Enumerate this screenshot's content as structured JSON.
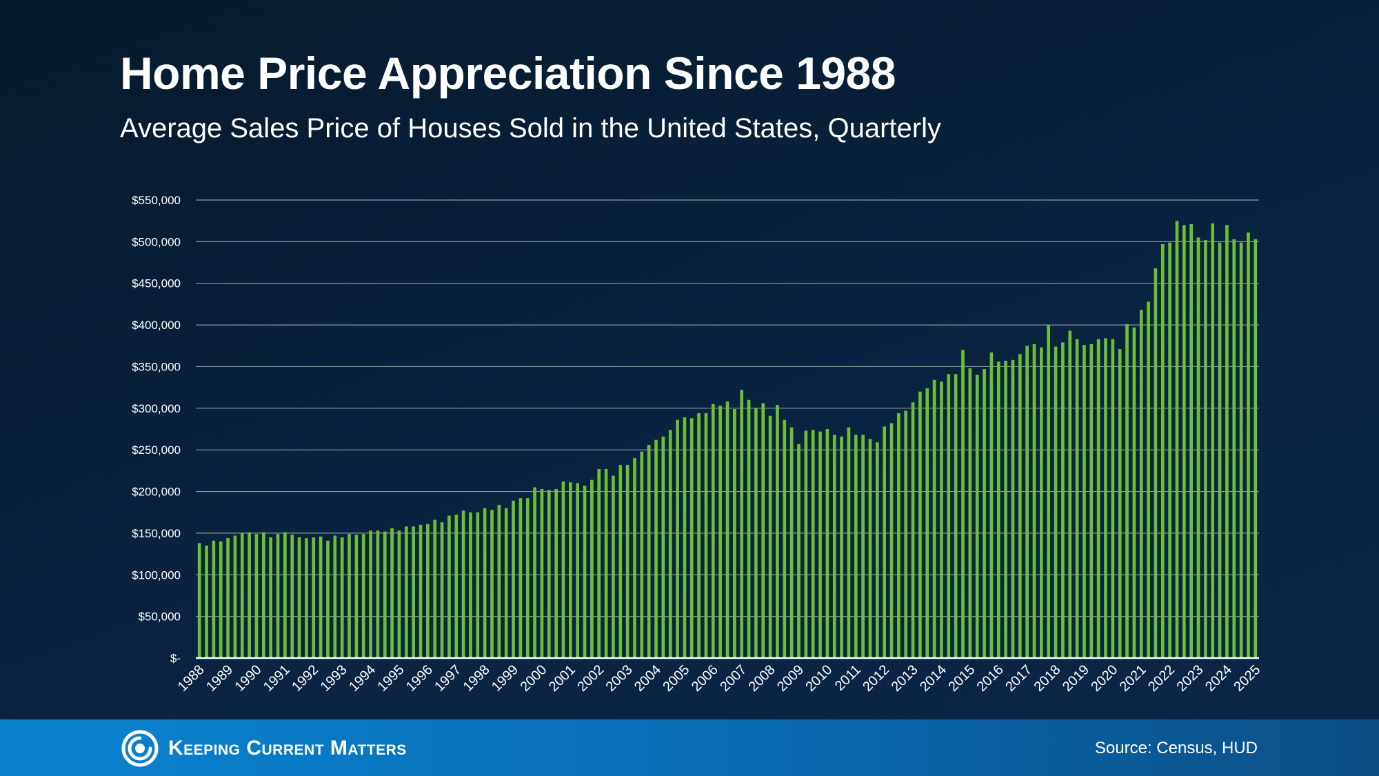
{
  "header": {
    "title": "Home Price Appreciation Since 1988",
    "subtitle": "Average Sales Price of Houses Sold in the United States, Quarterly"
  },
  "footer": {
    "brand": "Keeping Current Matters",
    "source": "Source: Census, HUD"
  },
  "colors": {
    "bar": "#6ac232",
    "grid": "#8a96a3",
    "axis": "#ffffff"
  },
  "chart_data": {
    "type": "bar",
    "grid": true,
    "ylim": [
      0,
      550000
    ],
    "ytick_values": [
      0,
      50000,
      100000,
      150000,
      200000,
      250000,
      300000,
      350000,
      400000,
      450000,
      500000,
      550000
    ],
    "ytick_labels": [
      "$-",
      "$50,000",
      "$100,000",
      "$150,000",
      "$200,000",
      "$250,000",
      "$300,000",
      "$350,000",
      "$400,000",
      "$450,000",
      "$500,000",
      "$550,000"
    ],
    "x_tick_labels": [
      "1988",
      "1989",
      "1990",
      "1991",
      "1992",
      "1993",
      "1994",
      "1995",
      "1996",
      "1997",
      "1998",
      "1999",
      "2000",
      "2001",
      "2002",
      "2003",
      "2004",
      "2005",
      "2006",
      "2007",
      "2008",
      "2009",
      "2010",
      "2011",
      "2012",
      "2013",
      "2014",
      "2015",
      "2016",
      "2017",
      "2018",
      "2019",
      "2020",
      "2021",
      "2022",
      "2023",
      "2024",
      "2025"
    ],
    "quarter_series": "Q1 1988 – Q1 2025 (149 quarterly values, in order)",
    "values": [
      138000,
      135000,
      141000,
      140000,
      144000,
      147000,
      150000,
      151000,
      149000,
      151000,
      145000,
      149000,
      151000,
      148000,
      145000,
      144000,
      145000,
      146000,
      141000,
      147000,
      145000,
      149000,
      148000,
      149000,
      153000,
      153000,
      152000,
      156000,
      153000,
      158000,
      158000,
      160000,
      161000,
      166000,
      163000,
      171000,
      172000,
      177000,
      175000,
      175000,
      180000,
      178000,
      184000,
      180000,
      189000,
      192000,
      192000,
      205000,
      203000,
      202000,
      203000,
      212000,
      211000,
      210000,
      207000,
      214000,
      227000,
      227000,
      219000,
      232000,
      232000,
      240000,
      248000,
      256000,
      262000,
      266000,
      274000,
      286000,
      289000,
      288000,
      294000,
      294000,
      305000,
      303000,
      308000,
      299000,
      322000,
      310000,
      300000,
      306000,
      291000,
      304000,
      286000,
      277000,
      257000,
      273000,
      274000,
      272000,
      275000,
      268000,
      266000,
      277000,
      268000,
      268000,
      263000,
      259000,
      278000,
      282000,
      294000,
      297000,
      307000,
      320000,
      324000,
      334000,
      332000,
      341000,
      341000,
      370000,
      348000,
      340000,
      347000,
      367000,
      356000,
      357000,
      358000,
      365000,
      375000,
      377000,
      373000,
      400000,
      374000,
      379000,
      393000,
      383000,
      376000,
      377000,
      383000,
      384000,
      383000,
      371000,
      401000,
      397000,
      418000,
      428000,
      468000,
      497000,
      499000,
      525000,
      520000,
      521000,
      505000,
      502000,
      522000,
      499000,
      520000,
      503000,
      499000,
      511000,
      503000
    ]
  }
}
